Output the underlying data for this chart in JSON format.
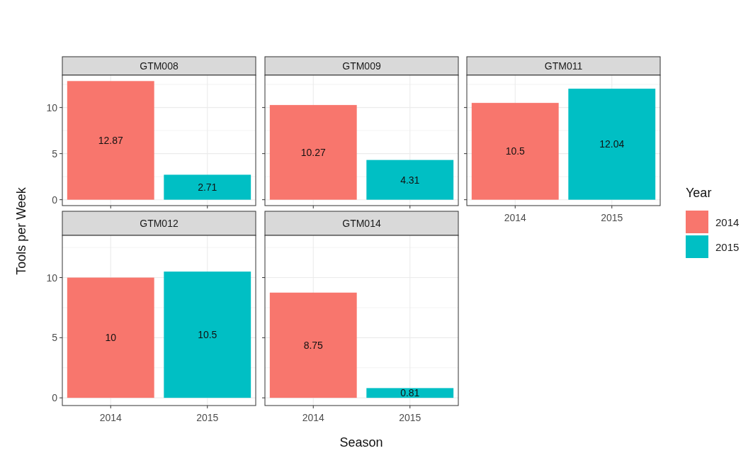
{
  "chart_data": [
    {
      "type": "bar",
      "title": "GTM008",
      "categories": [
        "2014",
        "2015"
      ],
      "stacked": true,
      "data_labels": true,
      "ylabel": "Tools per Week",
      "ylim": [
        -0.64,
        13.51
      ],
      "yticks": [
        0,
        {
          "value": 2.5,
          "label": null
        },
        5,
        {
          "value": 7.5,
          "label": null
        },
        10,
        {
          "value": 12.5,
          "label": null
        }
      ],
      "grid": true,
      "legend": false,
      "tick_labels": "y",
      "series": [
        {
          "color": "#f8766d",
          "values": [
            12.87,
            null
          ]
        },
        {
          "color": "#00bfc4",
          "values": [
            null,
            2.71
          ]
        }
      ]
    },
    {
      "type": "bar",
      "title": "GTM009",
      "categories": [
        "2014",
        "2015"
      ],
      "stacked": true,
      "data_labels": true,
      "ylim": [
        -0.64,
        13.51
      ],
      "yticks": [
        0,
        {
          "value": 2.5,
          "label": null
        },
        5,
        {
          "value": 7.5,
          "label": null
        },
        10,
        {
          "value": 12.5,
          "label": null
        }
      ],
      "grid": true,
      "legend": false,
      "tick_labels": false,
      "series": [
        {
          "color": "#f8766d",
          "values": [
            10.27,
            null
          ]
        },
        {
          "color": "#00bfc4",
          "values": [
            null,
            4.31
          ]
        }
      ]
    },
    {
      "type": "bar",
      "title": "GTM011",
      "categories": [
        "2014",
        "2015"
      ],
      "stacked": true,
      "data_labels": true,
      "ylim": [
        -0.64,
        13.51
      ],
      "yticks": [
        0,
        {
          "value": 2.5,
          "label": null
        },
        5,
        {
          "value": 7.5,
          "label": null
        },
        10,
        {
          "value": 12.5,
          "label": null
        }
      ],
      "grid": true,
      "legend": "right",
      "legend_title": "Year",
      "tick_labels": "x",
      "series": [
        {
          "name": "2014",
          "color": "#f8766d",
          "values": [
            10.5,
            null
          ]
        },
        {
          "name": "2015",
          "color": "#00bfc4",
          "values": [
            null,
            12.04
          ]
        }
      ]
    },
    {
      "type": "bar",
      "title": "GTM012",
      "categories": [
        "2014",
        "2015"
      ],
      "stacked": true,
      "data_labels": true,
      "ylim": [
        -0.64,
        13.51
      ],
      "yticks": [
        0,
        {
          "value": 2.5,
          "label": null
        },
        5,
        {
          "value": 7.5,
          "label": null
        },
        10,
        {
          "value": 12.5,
          "label": null
        }
      ],
      "grid": true,
      "legend": false,
      "series": [
        {
          "color": "#f8766d",
          "values": [
            10,
            null
          ]
        },
        {
          "color": "#00bfc4",
          "values": [
            null,
            10.5
          ]
        }
      ]
    },
    {
      "type": "bar",
      "title": "GTM014",
      "categories": [
        "2014",
        "2015"
      ],
      "stacked": true,
      "data_labels": true,
      "xlabel": "Season",
      "ylim": [
        -0.64,
        13.51
      ],
      "yticks": [
        0,
        {
          "value": 2.5,
          "label": null
        },
        5,
        {
          "value": 7.5,
          "label": null
        },
        10,
        {
          "value": 12.5,
          "label": null
        }
      ],
      "grid": true,
      "legend": false,
      "tick_labels": "x",
      "series": [
        {
          "color": "#f8766d",
          "values": [
            8.75,
            null
          ]
        },
        {
          "color": "#00bfc4",
          "values": [
            null,
            0.81
          ]
        }
      ]
    }
  ]
}
